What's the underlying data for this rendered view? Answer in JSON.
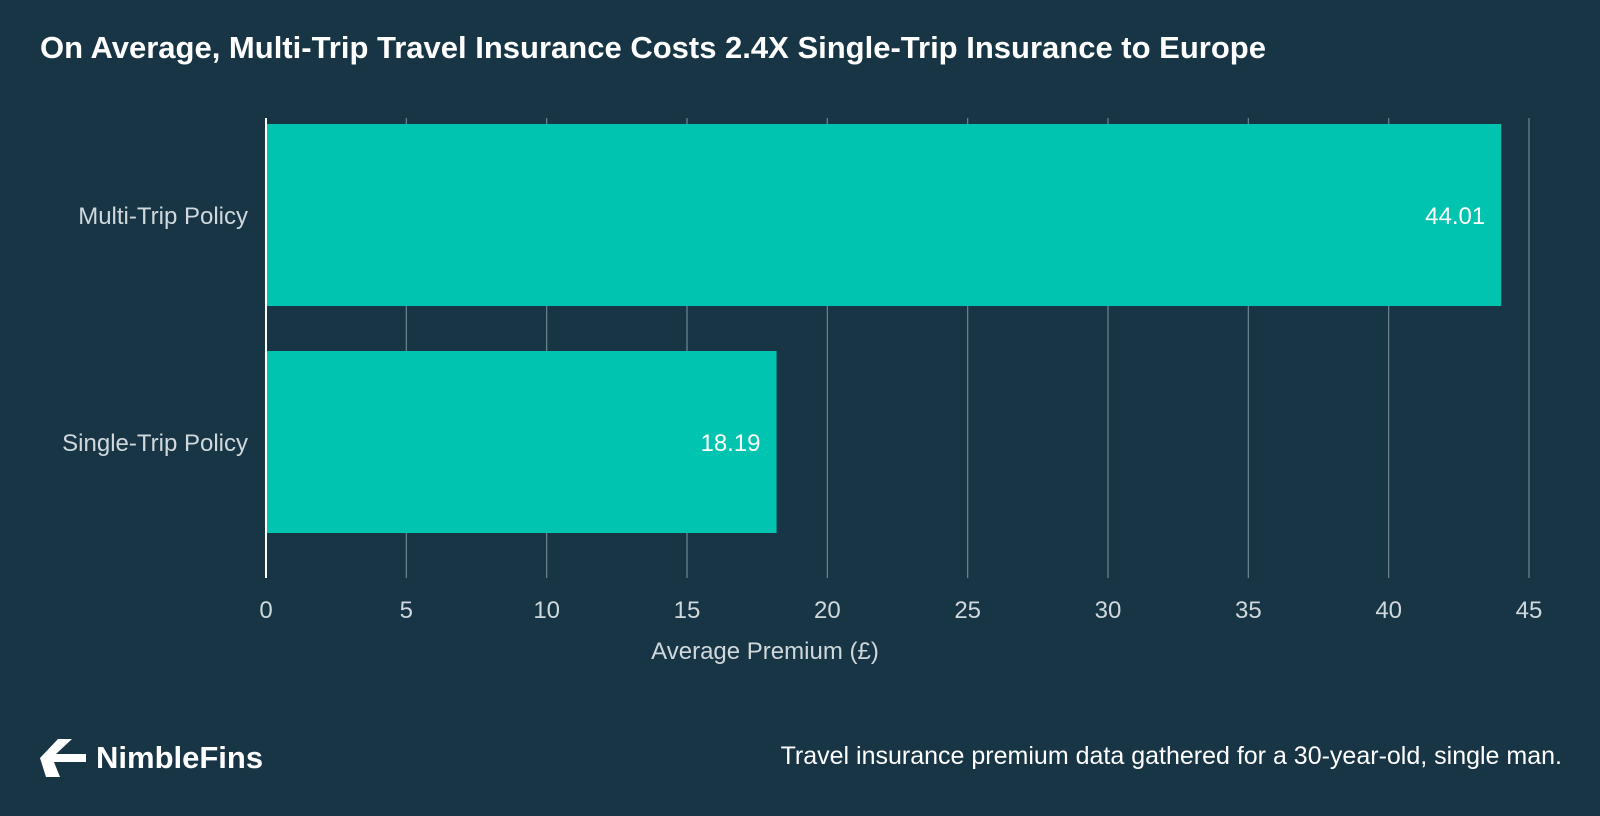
{
  "colors": {
    "background": "#173545",
    "bar": "#00c4b0",
    "grid": "#6f8691",
    "text": "#ffffff",
    "muted_text": "#cfd8dc"
  },
  "chart_data": {
    "type": "bar",
    "orientation": "horizontal",
    "title": "On Average, Multi-Trip Travel Insurance Costs 2.4X Single-Trip Insurance to Europe",
    "categories": [
      "Multi-Trip Policy",
      "Single-Trip Policy"
    ],
    "values": [
      44.01,
      18.19
    ],
    "value_labels": [
      "44.01",
      "18.19"
    ],
    "xlabel": "Average Premium (£)",
    "ylabel": "",
    "xlim": [
      0,
      45
    ],
    "xticks": [
      0,
      5,
      10,
      15,
      20,
      25,
      30,
      35,
      40,
      45
    ],
    "grid": true
  },
  "footer": {
    "brand": "NimbleFins",
    "logo_icon": "nimblefins-arrow-icon",
    "note": "Travel insurance premium data gathered for a 30-year-old, single man."
  }
}
